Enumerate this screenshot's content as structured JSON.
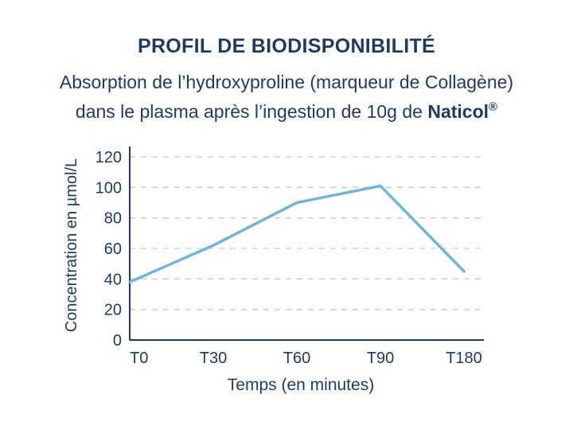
{
  "title": "PROFIL DE BIODISPONIBILITÉ",
  "subtitle_line1": "Absorption de l’hydroxyproline (marqueur de Collagène)",
  "subtitle_line2_prefix": "dans le plasma après l’ingestion de 10g de ",
  "subtitle_brand": "Naticol",
  "subtitle_brand_mark": "®",
  "colors": {
    "text": "#1e3a5f",
    "line": "#6fb4dd",
    "grid": "#c4c8cc",
    "axis": "#1e3a5f"
  },
  "chart_data": {
    "type": "line",
    "categories": [
      "T0",
      "T30",
      "T60",
      "T90",
      "T180"
    ],
    "values": [
      38,
      62,
      90,
      101,
      45
    ],
    "xlabel": "Temps (en minutes)",
    "ylabel": "Concentration en µmol/L",
    "ylim": [
      0,
      120
    ],
    "yticks": [
      0,
      20,
      40,
      60,
      80,
      100,
      120
    ],
    "grid": true,
    "grid_style": "dashed"
  }
}
